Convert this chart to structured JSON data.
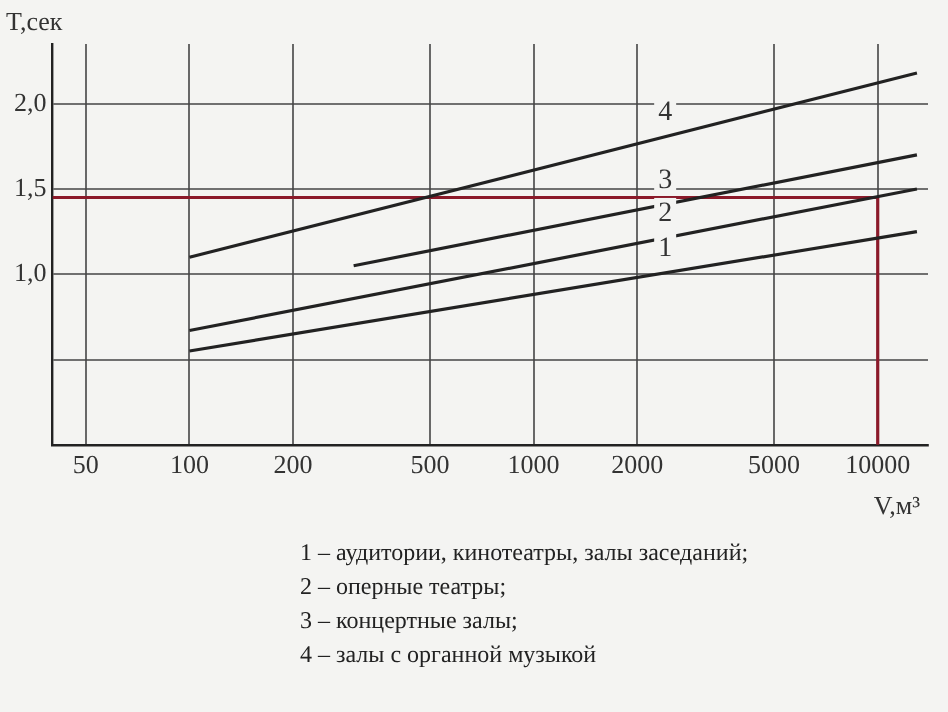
{
  "chart_data": {
    "type": "line",
    "xlabel": "V,м³",
    "ylabel": "T,сек",
    "log": "x",
    "xlim": [
      40,
      14000
    ],
    "xticks": [
      50,
      100,
      200,
      500,
      1000,
      2000,
      5000,
      10000
    ],
    "ylim": [
      0,
      2.35
    ],
    "yticks": [
      {
        "value": 0,
        "label": null
      },
      {
        "value": 0.5,
        "label": null
      },
      {
        "value": 1,
        "label": "1,0"
      },
      {
        "value": 1.5,
        "label": "1,5"
      },
      {
        "value": 2,
        "label": "2,0"
      }
    ],
    "grid": true,
    "legend": false,
    "marker": "none",
    "line_style": "solid",
    "series": [
      {
        "name": "1",
        "color": "#222222",
        "x": [
          100,
          13000
        ],
        "values": [
          0.55,
          1.25
        ]
      },
      {
        "name": "2",
        "color": "#222222",
        "x": [
          100,
          13000
        ],
        "values": [
          0.67,
          1.5
        ]
      },
      {
        "name": "3",
        "color": "#222222",
        "x": [
          300,
          13000
        ],
        "values": [
          1.05,
          1.7
        ]
      },
      {
        "name": "4",
        "color": "#222222",
        "x": [
          100,
          13000
        ],
        "values": [
          1.1,
          2.18
        ]
      },
      {
        "color": "#8b1a2a",
        "x": [
          40,
          10000,
          10000
        ],
        "values": [
          1.45,
          1.45,
          0
        ]
      }
    ],
    "annotations": [
      "1 – аудитории, кинотеатры, залы заседаний;",
      "2 – оперные театры;",
      "3 – концертные залы;",
      "4 – залы с органной музыкой"
    ]
  }
}
